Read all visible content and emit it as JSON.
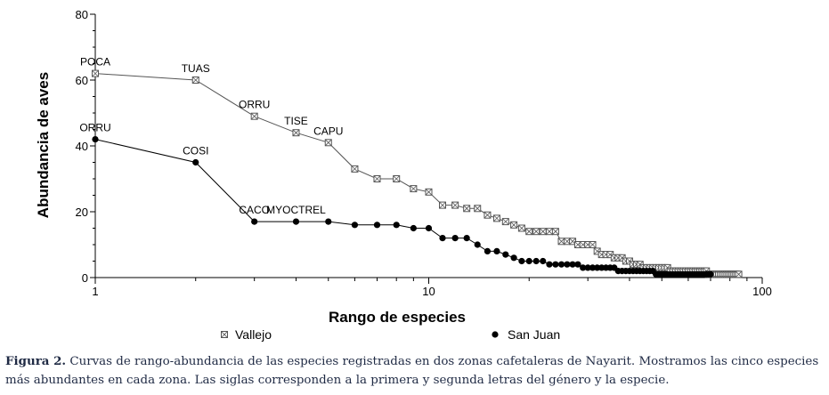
{
  "chart_data": {
    "type": "line",
    "xlabel": "Rango de especies",
    "ylabel": "Abundancia de aves",
    "x_scale": "log",
    "xlim": [
      1,
      100
    ],
    "ylim": [
      0,
      80
    ],
    "x_ticks": [
      "1",
      "10",
      "100"
    ],
    "y_ticks": [
      "0",
      "20",
      "40",
      "60",
      "80"
    ],
    "grid": false,
    "legend_position": "bottom",
    "series": [
      {
        "name": "Vallejo",
        "marker": "crossed-square",
        "color": "#555555",
        "x": [
          1,
          2,
          3,
          4,
          5,
          6,
          7,
          8,
          9,
          10,
          11,
          12,
          13,
          14,
          15,
          16,
          17,
          18,
          19,
          20,
          21,
          22,
          23,
          24,
          25,
          26,
          27,
          28,
          29,
          30,
          31,
          32,
          33,
          34,
          35,
          36,
          37,
          38,
          39,
          40,
          41,
          42,
          43,
          44,
          45,
          46,
          47,
          48,
          49,
          50,
          51,
          52,
          53,
          54,
          55,
          56,
          57,
          58,
          59,
          60,
          61,
          62,
          63,
          64,
          65,
          66,
          67,
          68,
          69,
          70,
          71,
          72,
          73,
          74,
          75,
          76,
          77,
          78,
          79,
          80,
          81,
          82,
          83,
          84,
          85
        ],
        "y": [
          62,
          60,
          49,
          44,
          41,
          33,
          30,
          30,
          27,
          26,
          22,
          22,
          21,
          21,
          19,
          18,
          17,
          16,
          15,
          14,
          14,
          14,
          14,
          14,
          11,
          11,
          11,
          10,
          10,
          10,
          10,
          8,
          7,
          7,
          7,
          6,
          6,
          6,
          5,
          5,
          4,
          4,
          4,
          3,
          3,
          3,
          3,
          3,
          3,
          3,
          3,
          3,
          2,
          2,
          2,
          2,
          2,
          2,
          2,
          2,
          2,
          2,
          2,
          2,
          2,
          2,
          2,
          2,
          1,
          1,
          1,
          1,
          1,
          1,
          1,
          1,
          1,
          1,
          1,
          1,
          1,
          1,
          1,
          1,
          1
        ]
      },
      {
        "name": "San Juan",
        "marker": "filled-circle",
        "color": "#000000",
        "x": [
          1,
          2,
          3,
          4,
          5,
          6,
          7,
          8,
          9,
          10,
          11,
          12,
          13,
          14,
          15,
          16,
          17,
          18,
          19,
          20,
          21,
          22,
          23,
          24,
          25,
          26,
          27,
          28,
          29,
          30,
          31,
          32,
          33,
          34,
          35,
          36,
          37,
          38,
          39,
          40,
          41,
          42,
          43,
          44,
          45,
          46,
          47,
          48,
          49,
          50,
          51,
          52,
          53,
          54,
          55,
          56,
          57,
          58,
          59,
          60,
          61,
          62,
          63,
          64,
          65,
          66,
          67,
          68,
          69,
          70
        ],
        "y": [
          42,
          35,
          17,
          17,
          17,
          16,
          16,
          16,
          15,
          15,
          12,
          12,
          12,
          10,
          8,
          8,
          7,
          6,
          5,
          5,
          5,
          5,
          4,
          4,
          4,
          4,
          4,
          4,
          3,
          3,
          3,
          3,
          3,
          3,
          3,
          3,
          2,
          2,
          2,
          2,
          2,
          2,
          2,
          2,
          2,
          2,
          2,
          1,
          1,
          1,
          1,
          1,
          1,
          1,
          1,
          1,
          1,
          1,
          1,
          1,
          1,
          1,
          1,
          1,
          1,
          1,
          1,
          1,
          1,
          1
        ]
      }
    ],
    "annotations": [
      {
        "series": "Vallejo",
        "x": 1,
        "label": "POCA"
      },
      {
        "series": "Vallejo",
        "x": 2,
        "label": "TUAS"
      },
      {
        "series": "Vallejo",
        "x": 3,
        "label": "ORRU"
      },
      {
        "series": "Vallejo",
        "x": 4,
        "label": "TISE"
      },
      {
        "series": "Vallejo",
        "x": 5,
        "label": "CAPU"
      },
      {
        "series": "San Juan",
        "x": 1,
        "label": "ORRU"
      },
      {
        "series": "San Juan",
        "x": 2,
        "label": "COSI"
      },
      {
        "series": "San Juan",
        "x": 3,
        "label": "CACO"
      },
      {
        "series": "San Juan",
        "x": 4,
        "label": "MYOCTREL"
      }
    ]
  },
  "caption": {
    "label": "Figura 2.",
    "text": "Curvas de rango-abundancia de las especies registradas en dos zonas cafetaleras de Nayarit. Mostramos las cinco especies más abundantes en cada zona. Las siglas corresponden a la primera y segunda letras del género y la especie."
  }
}
